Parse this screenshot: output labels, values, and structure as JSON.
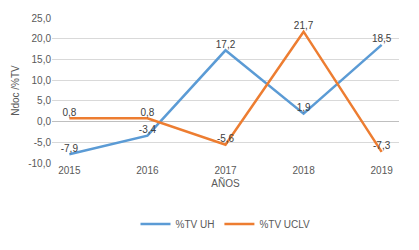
{
  "chart_data": {
    "type": "line",
    "x_label": "AÑOS",
    "y_label": "Ndoc /%TV",
    "categories": [
      "2015",
      "2016",
      "2017",
      "2018",
      "2019"
    ],
    "series": [
      {
        "name": "%TV UH",
        "color": "#5B9BD5",
        "values": [
          -7.9,
          -3.4,
          17.2,
          1.9,
          18.5
        ],
        "value_labels": [
          "-7,9",
          "-3,4",
          "17,2",
          "1,9",
          "18,5"
        ]
      },
      {
        "name": "%TV UCLV",
        "color": "#ED7D31",
        "values": [
          0.8,
          0.8,
          -5.6,
          21.7,
          -7.3
        ],
        "value_labels": [
          "0,8",
          "0,8",
          "-5,6",
          "21,7",
          "-7,3"
        ]
      }
    ],
    "ylim": [
      -10,
      25
    ],
    "yticks": [
      {
        "value": -10,
        "label": "-10,0"
      },
      {
        "value": -5,
        "label": "-5,0"
      },
      {
        "value": 0,
        "label": "0,0"
      },
      {
        "value": 5,
        "label": "5,0"
      },
      {
        "value": 10,
        "label": "10,0"
      },
      {
        "value": 15,
        "label": "15,0"
      },
      {
        "value": 20,
        "label": "20,0"
      },
      {
        "value": 25,
        "label": "25,0"
      }
    ],
    "grid": true,
    "legend": "bottom",
    "data_labels": true
  }
}
